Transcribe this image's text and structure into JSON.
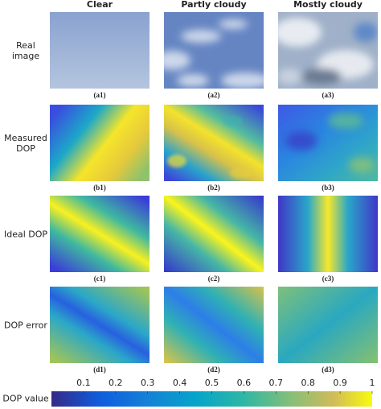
{
  "header": {
    "columns": [
      "Clear",
      "Partly cloudy",
      "Mostly cloudy"
    ]
  },
  "rows": [
    "Real image",
    "Measured DOP",
    "Ideal DOP",
    "DOP error"
  ],
  "panels": [
    [
      "(a1)",
      "(a2)",
      "(a3)"
    ],
    [
      "(b1)",
      "(b2)",
      "(b3)"
    ],
    [
      "(c1)",
      "(c2)",
      "(c3)"
    ],
    [
      "(d1)",
      "(d2)",
      "(d3)"
    ]
  ],
  "colorbar": {
    "label": "DOP value",
    "range": [
      0,
      1
    ],
    "ticks": [
      0.1,
      0.2,
      0.3,
      0.4,
      0.5,
      0.6,
      0.7,
      0.8,
      0.9,
      1
    ]
  }
}
